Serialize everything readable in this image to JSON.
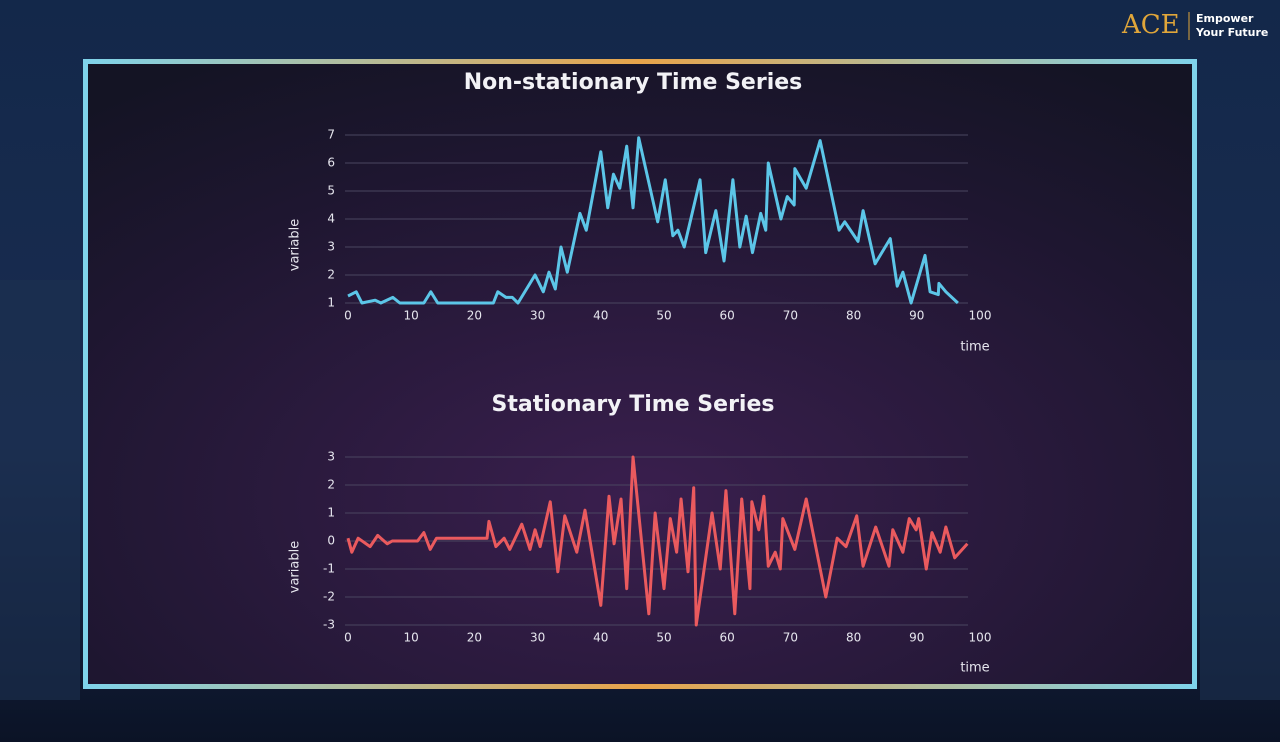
{
  "brand": {
    "logo": "ACE",
    "tagline": [
      "Empower",
      "Your Future"
    ]
  },
  "chart_data": [
    {
      "type": "line",
      "title": "Non-stationary Time Series",
      "x_label": "time",
      "y_label": "variable",
      "xlim": [
        0,
        100
      ],
      "ylim": [
        1,
        7
      ],
      "xticks": [
        0,
        10,
        20,
        30,
        40,
        50,
        60,
        70,
        80,
        90,
        100
      ],
      "yticks": [
        1,
        2,
        3,
        4,
        5,
        6,
        7
      ],
      "grid": true,
      "x": [
        0,
        1.3,
        2.2,
        4.3,
        5.2,
        7.1,
        8.2,
        12,
        13.1,
        14.2,
        23,
        23.7,
        25,
        26,
        26.9,
        29.6,
        30.9,
        31.8,
        32.8,
        33.7,
        34.7,
        36.7,
        37.7,
        40,
        41.1,
        42,
        43,
        44.1,
        45.1,
        46,
        49,
        50.2,
        51.4,
        52.2,
        53.2,
        55.7,
        56.6,
        58.2,
        59.5,
        60.9,
        62,
        63,
        64,
        65.3,
        66.1,
        66.5,
        68.5,
        69.5,
        70.6,
        70.7,
        72.5,
        74.7,
        77.7,
        78.6,
        80.7,
        81.5,
        83.4,
        85.8,
        86.9,
        87.8,
        89.1,
        91.3,
        92.1,
        93.4,
        93.5,
        94.6,
        96.5
      ],
      "series": [
        {
          "name": "variable",
          "color": "#5cc6e8",
          "values": [
            1.25,
            1.4,
            1.0,
            1.1,
            1.0,
            1.2,
            1.0,
            1.0,
            1.4,
            1.0,
            1.0,
            1.4,
            1.2,
            1.2,
            1.0,
            2.0,
            1.4,
            2.1,
            1.5,
            3.0,
            2.1,
            4.2,
            3.6,
            6.4,
            4.4,
            5.6,
            5.1,
            6.6,
            4.4,
            6.9,
            3.9,
            5.4,
            3.4,
            3.6,
            3.0,
            5.4,
            2.8,
            4.3,
            2.5,
            5.4,
            3.0,
            4.1,
            2.8,
            4.2,
            3.6,
            6.0,
            4.0,
            4.8,
            4.5,
            5.8,
            5.1,
            6.8,
            3.6,
            3.9,
            3.2,
            4.3,
            2.4,
            3.3,
            1.6,
            2.1,
            1.0,
            2.7,
            1.4,
            1.3,
            1.7,
            1.4,
            1.0
          ]
        }
      ]
    },
    {
      "type": "line",
      "title": "Stationary Time Series",
      "x_label": "time",
      "y_label": "variable",
      "xlim": [
        0,
        100
      ],
      "ylim": [
        -3,
        3
      ],
      "xticks": [
        0,
        10,
        20,
        30,
        40,
        50,
        60,
        70,
        80,
        90,
        100
      ],
      "yticks": [
        -3,
        -2,
        -1,
        0,
        1,
        2,
        3
      ],
      "grid": true,
      "x": [
        0,
        0.6,
        1.6,
        3.5,
        4.7,
        6.2,
        7,
        11,
        12,
        13,
        14,
        22,
        22.3,
        23.4,
        24.7,
        25.6,
        27.5,
        28.8,
        29.6,
        30.4,
        32,
        33.2,
        34.3,
        36.2,
        37.5,
        40,
        41.3,
        42.1,
        43.2,
        44.1,
        45.1,
        47.6,
        48.6,
        50,
        51,
        52,
        52.7,
        53.8,
        54.7,
        55.1,
        57.6,
        58.9,
        59.8,
        61.2,
        62.3,
        63.6,
        63.9,
        65,
        65.8,
        66.5,
        67.6,
        68.4,
        68.8,
        70.7,
        72.5,
        75.6,
        77.4,
        78.8,
        80.5,
        81.5,
        83.5,
        85.6,
        86.2,
        87.8,
        88.8,
        89.9,
        90.3,
        91.5,
        92.4,
        93.7,
        94.6,
        96,
        98
      ],
      "series": [
        {
          "name": "variable",
          "color": "#ea5a5e",
          "values": [
            0.1,
            -0.4,
            0.1,
            -0.2,
            0.2,
            -0.1,
            0,
            0,
            0.3,
            -0.3,
            0.1,
            0.1,
            0.7,
            -0.2,
            0.1,
            -0.3,
            0.6,
            -0.3,
            0.4,
            -0.2,
            1.4,
            -1.1,
            0.9,
            -0.4,
            1.1,
            -2.3,
            1.6,
            -0.1,
            1.5,
            -1.7,
            3.0,
            -2.6,
            1.0,
            -1.7,
            0.8,
            -0.4,
            1.5,
            -1.1,
            1.9,
            -3.0,
            1.0,
            -1.0,
            1.8,
            -2.6,
            1.5,
            -1.7,
            1.4,
            0.4,
            1.6,
            -0.9,
            -0.4,
            -1.0,
            0.8,
            -0.3,
            1.5,
            -2.0,
            0.1,
            -0.2,
            0.9,
            -0.9,
            0.5,
            -0.9,
            0.4,
            -0.4,
            0.8,
            0.4,
            0.8,
            -1.0,
            0.3,
            -0.4,
            0.5,
            -0.6,
            -0.1
          ]
        }
      ]
    }
  ]
}
